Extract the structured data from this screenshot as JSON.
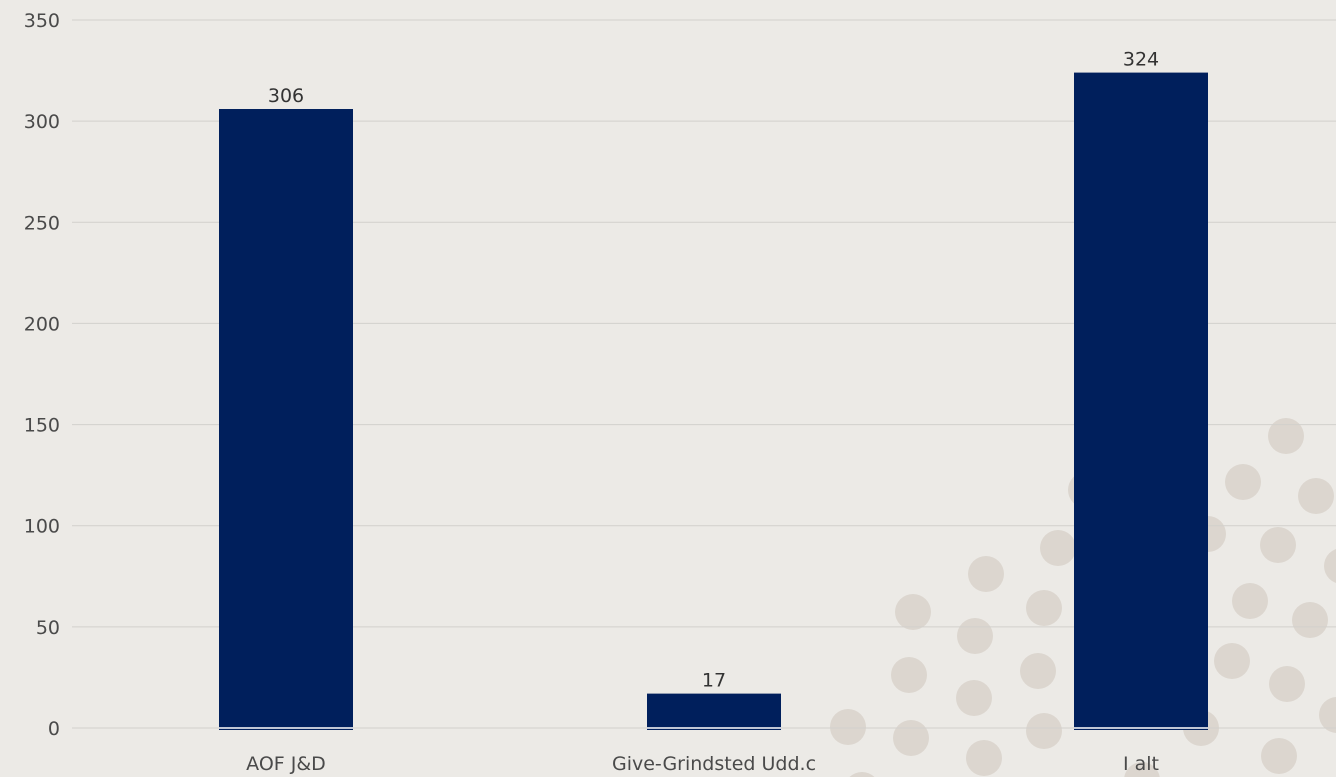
{
  "chart_data": {
    "type": "bar",
    "title": "",
    "xlabel": "",
    "ylabel": "",
    "categories": [
      "AOF J&D",
      "Give-Grindsted Udd.c",
      "I alt"
    ],
    "values": [
      306,
      17,
      324
    ],
    "data_labels": [
      "306",
      "17",
      "324"
    ],
    "ylim": [
      0,
      350
    ],
    "yticks": [
      0,
      50,
      100,
      150,
      200,
      250,
      300,
      350
    ],
    "grid": true,
    "legend": "none"
  },
  "colors": {
    "background": "#ECEAE6",
    "bar": "#001F5C",
    "bar_base_line": "#FFFFFF",
    "grid": "#D2D0CC",
    "decoration_dots": "#DCD6CF"
  }
}
